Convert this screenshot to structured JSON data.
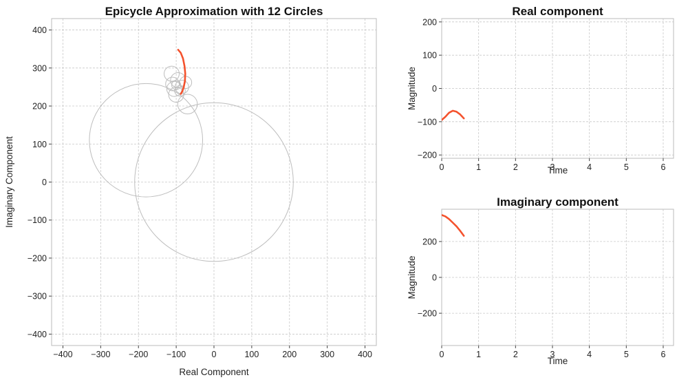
{
  "chart_data": [
    {
      "type": "line",
      "title": "Epicycle Approximation with 12 Circles",
      "xlabel": "Real Component",
      "ylabel": "Imaginary Component",
      "xlim": [
        -430,
        430
      ],
      "ylim": [
        -430,
        430
      ],
      "xticks": [
        -400,
        -300,
        -200,
        -100,
        0,
        100,
        200,
        300,
        400
      ],
      "yticks": [
        -400,
        -300,
        -200,
        -100,
        0,
        100,
        200,
        300,
        400
      ],
      "grid": true,
      "circles": [
        {
          "cx": 0,
          "cy": 0,
          "r": 210
        },
        {
          "cx": -180,
          "cy": 110,
          "r": 150
        },
        {
          "cx": -70,
          "cy": 205,
          "r": 26
        },
        {
          "cx": -100,
          "cy": 230,
          "r": 20
        },
        {
          "cx": -85,
          "cy": 250,
          "r": 18
        },
        {
          "cx": -105,
          "cy": 245,
          "r": 20
        },
        {
          "cx": -75,
          "cy": 262,
          "r": 16
        },
        {
          "cx": -110,
          "cy": 258,
          "r": 18
        },
        {
          "cx": -95,
          "cy": 268,
          "r": 20
        },
        {
          "cx": -112,
          "cy": 285,
          "r": 20
        },
        {
          "cx": -90,
          "cy": 240,
          "r": 14
        },
        {
          "cx": -100,
          "cy": 255,
          "r": 12
        }
      ],
      "series": [
        {
          "x": [
            -95,
            -88,
            -82,
            -78,
            -76,
            -77,
            -80,
            -84,
            -88
          ],
          "y": [
            348,
            340,
            325,
            305,
            285,
            265,
            250,
            238,
            232
          ]
        }
      ]
    },
    {
      "type": "line",
      "title": "Real component",
      "xlabel": "Time",
      "ylabel": "Magnitude",
      "xlim": [
        0,
        6.28
      ],
      "ylim": [
        -210,
        210
      ],
      "xticks": [
        0,
        1,
        2,
        3,
        4,
        5,
        6
      ],
      "yticks": [
        -200,
        -100,
        0,
        100,
        200
      ],
      "grid": true,
      "series": [
        {
          "x": [
            0,
            0.1,
            0.2,
            0.3,
            0.4,
            0.5,
            0.6
          ],
          "y": [
            -95,
            -85,
            -73,
            -67,
            -70,
            -78,
            -90
          ]
        }
      ]
    },
    {
      "type": "line",
      "title": "Imaginary component",
      "xlabel": "Time",
      "ylabel": "Magnitude",
      "xlim": [
        0,
        6.28
      ],
      "ylim": [
        -380,
        380
      ],
      "xticks": [
        0,
        1,
        2,
        3,
        4,
        5,
        6
      ],
      "yticks": [
        -200,
        0,
        200
      ],
      "grid": true,
      "series": [
        {
          "x": [
            0,
            0.1,
            0.2,
            0.3,
            0.4,
            0.5,
            0.6
          ],
          "y": [
            348,
            340,
            325,
            305,
            285,
            260,
            232
          ]
        }
      ]
    }
  ]
}
